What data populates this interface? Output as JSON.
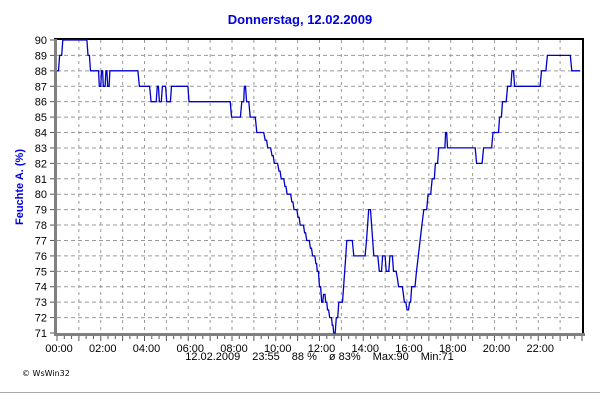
{
  "title": "Donnerstag, 12.02.2009",
  "footer": "© WsWin32",
  "stats": {
    "date": "12.02.2009",
    "time": "23:55",
    "current": "88 %",
    "average": "ø 83%",
    "max": "Max:90",
    "min": "Min:71"
  },
  "chart_data": {
    "type": "line",
    "title": "Donnerstag, 12.02.2009",
    "xlabel": "",
    "ylabel": "Feuchte A. (%)",
    "ylim": [
      71,
      90
    ],
    "xlim_minutes": [
      0,
      1440
    ],
    "grid": true,
    "legend": "none",
    "line_color": "#0000cc",
    "grid_color": "#9a9a9a",
    "axis_color": "#808080",
    "frame_color": "#000000",
    "text_color": "#000000",
    "title_color": "#0000dd",
    "y_ticks": [
      "90",
      "89",
      "88",
      "87",
      "86",
      "85",
      "84",
      "83",
      "82",
      "81",
      "80",
      "79",
      "78",
      "77",
      "76",
      "75",
      "74",
      "73",
      "72",
      "71"
    ],
    "x_ticks": [
      {
        "m": 0,
        "label": "00:00"
      },
      {
        "m": 120,
        "label": "02:00"
      },
      {
        "m": 240,
        "label": "04:00"
      },
      {
        "m": 360,
        "label": "06:00"
      },
      {
        "m": 480,
        "label": "08:00"
      },
      {
        "m": 600,
        "label": "10:00"
      },
      {
        "m": 720,
        "label": "12:00"
      },
      {
        "m": 840,
        "label": "14:00"
      },
      {
        "m": 960,
        "label": "16:00"
      },
      {
        "m": 1080,
        "label": "18:00"
      },
      {
        "m": 1200,
        "label": "20:00"
      },
      {
        "m": 1320,
        "label": "22:00"
      }
    ],
    "series": [
      {
        "name": "Feuchte A. (%)",
        "x_unit": "minutes_after_midnight",
        "points": [
          [
            0,
            88
          ],
          [
            4,
            88
          ],
          [
            7,
            89
          ],
          [
            13,
            89
          ],
          [
            16,
            90
          ],
          [
            82,
            90
          ],
          [
            85,
            89
          ],
          [
            89,
            89
          ],
          [
            92,
            88
          ],
          [
            114,
            88
          ],
          [
            116,
            87
          ],
          [
            120,
            87
          ],
          [
            122,
            88
          ],
          [
            125,
            88
          ],
          [
            127,
            87
          ],
          [
            132,
            87
          ],
          [
            134,
            88
          ],
          [
            137,
            88
          ],
          [
            139,
            87
          ],
          [
            143,
            87
          ],
          [
            145,
            88
          ],
          [
            222,
            88
          ],
          [
            226,
            87
          ],
          [
            254,
            87
          ],
          [
            258,
            86
          ],
          [
            272,
            86
          ],
          [
            275,
            87
          ],
          [
            278,
            87
          ],
          [
            281,
            86
          ],
          [
            286,
            86
          ],
          [
            289,
            87
          ],
          [
            298,
            87
          ],
          [
            301,
            86
          ],
          [
            311,
            86
          ],
          [
            314,
            87
          ],
          [
            359,
            87
          ],
          [
            362,
            86
          ],
          [
            475,
            86
          ],
          [
            479,
            85
          ],
          [
            503,
            85
          ],
          [
            507,
            86
          ],
          [
            512,
            86
          ],
          [
            514,
            87
          ],
          [
            517,
            87
          ],
          [
            520,
            86
          ],
          [
            526,
            86
          ],
          [
            530,
            85
          ],
          [
            544,
            85
          ],
          [
            548,
            84
          ],
          [
            567,
            84
          ],
          [
            571,
            83.5
          ],
          [
            575,
            83.5
          ],
          [
            578,
            83
          ],
          [
            586,
            83
          ],
          [
            590,
            82.5
          ],
          [
            593,
            82.5
          ],
          [
            596,
            82
          ],
          [
            605,
            82
          ],
          [
            609,
            81.5
          ],
          [
            612,
            81.5
          ],
          [
            615,
            81
          ],
          [
            622,
            81
          ],
          [
            625,
            80.5
          ],
          [
            628,
            80.5
          ],
          [
            631,
            80
          ],
          [
            641,
            80
          ],
          [
            644,
            79.5
          ],
          [
            647,
            79.5
          ],
          [
            650,
            79
          ],
          [
            658,
            79
          ],
          [
            661,
            78.5
          ],
          [
            664,
            78.5
          ],
          [
            667,
            78
          ],
          [
            676,
            78
          ],
          [
            679,
            77.5
          ],
          [
            682,
            77.5
          ],
          [
            685,
            77
          ],
          [
            692,
            77
          ],
          [
            695,
            76.5
          ],
          [
            698,
            76.5
          ],
          [
            701,
            76
          ],
          [
            707,
            76
          ],
          [
            710,
            75.5
          ],
          [
            712,
            75.5
          ],
          [
            714,
            75
          ],
          [
            717,
            75
          ],
          [
            720,
            74
          ],
          [
            723,
            74
          ],
          [
            726,
            73
          ],
          [
            729,
            73
          ],
          [
            731,
            73.5
          ],
          [
            735,
            73.5
          ],
          [
            737,
            73
          ],
          [
            740,
            73
          ],
          [
            742,
            72.5
          ],
          [
            745,
            72.5
          ],
          [
            748,
            72
          ],
          [
            753,
            72
          ],
          [
            755,
            71.5
          ],
          [
            757,
            71.5
          ],
          [
            759,
            71
          ],
          [
            763,
            71
          ],
          [
            766,
            72
          ],
          [
            770,
            72
          ],
          [
            773,
            73
          ],
          [
            783,
            73
          ],
          [
            786,
            74
          ],
          [
            789,
            75
          ],
          [
            792,
            76
          ],
          [
            795,
            77
          ],
          [
            810,
            77
          ],
          [
            814,
            76
          ],
          [
            845,
            76
          ],
          [
            849,
            77
          ],
          [
            852,
            78
          ],
          [
            855,
            79
          ],
          [
            860,
            79
          ],
          [
            863,
            78
          ],
          [
            866,
            77
          ],
          [
            869,
            76
          ],
          [
            880,
            76
          ],
          [
            884,
            75
          ],
          [
            890,
            75
          ],
          [
            893,
            76
          ],
          [
            900,
            76
          ],
          [
            903,
            75
          ],
          [
            910,
            75
          ],
          [
            913,
            76
          ],
          [
            920,
            76
          ],
          [
            923,
            75
          ],
          [
            930,
            75
          ],
          [
            934,
            74.5
          ],
          [
            937,
            74
          ],
          [
            947,
            74
          ],
          [
            950,
            73.5
          ],
          [
            953,
            73
          ],
          [
            957,
            73
          ],
          [
            960,
            72.5
          ],
          [
            964,
            72.5
          ],
          [
            967,
            73
          ],
          [
            970,
            73
          ],
          [
            973,
            74
          ],
          [
            982,
            74
          ],
          [
            986,
            75
          ],
          [
            991,
            76
          ],
          [
            996,
            77
          ],
          [
            1001,
            78
          ],
          [
            1006,
            79
          ],
          [
            1014,
            79
          ],
          [
            1018,
            80
          ],
          [
            1025,
            80
          ],
          [
            1029,
            81
          ],
          [
            1035,
            81
          ],
          [
            1038,
            82
          ],
          [
            1044,
            82
          ],
          [
            1047,
            83
          ],
          [
            1064,
            83
          ],
          [
            1066,
            84
          ],
          [
            1069,
            84
          ],
          [
            1071,
            83
          ],
          [
            1147,
            83
          ],
          [
            1151,
            82
          ],
          [
            1166,
            82
          ],
          [
            1170,
            83
          ],
          [
            1192,
            83
          ],
          [
            1196,
            84
          ],
          [
            1211,
            84
          ],
          [
            1214,
            85
          ],
          [
            1219,
            85
          ],
          [
            1222,
            86
          ],
          [
            1232,
            86
          ],
          [
            1236,
            87
          ],
          [
            1245,
            87
          ],
          [
            1248,
            88
          ],
          [
            1252,
            88
          ],
          [
            1255,
            87
          ],
          [
            1325,
            87
          ],
          [
            1329,
            88
          ],
          [
            1341,
            88
          ],
          [
            1345,
            89
          ],
          [
            1408,
            89
          ],
          [
            1412,
            88
          ],
          [
            1435,
            88
          ]
        ]
      }
    ]
  }
}
